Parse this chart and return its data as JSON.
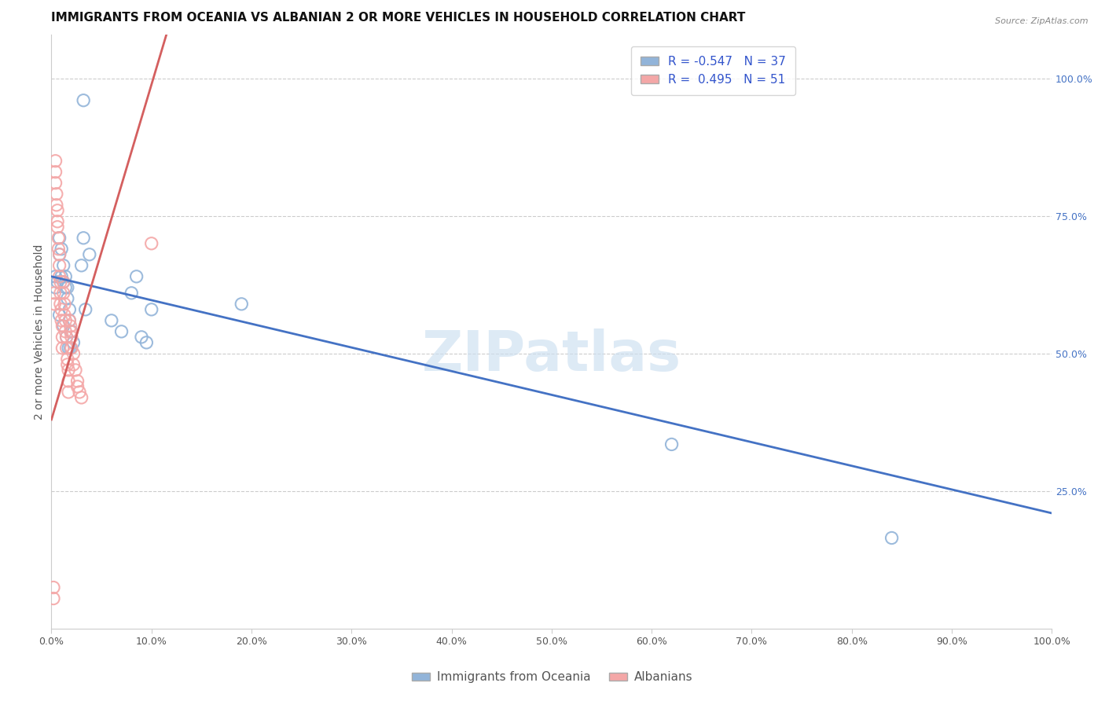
{
  "title": "IMMIGRANTS FROM OCEANIA VS ALBANIAN 2 OR MORE VEHICLES IN HOUSEHOLD CORRELATION CHART",
  "source": "Source: ZipAtlas.com",
  "ylabel": "2 or more Vehicles in Household",
  "watermark": "ZIPatlas",
  "legend_blue_R": "-0.547",
  "legend_blue_N": "37",
  "legend_pink_R": "0.495",
  "legend_pink_N": "51",
  "blue_color": "#92b4d9",
  "pink_color": "#f4a7a7",
  "blue_line_color": "#4472c4",
  "pink_line_color": "#d45f5f",
  "right_ytick_labels": [
    "25.0%",
    "50.0%",
    "75.0%",
    "100.0%"
  ],
  "right_ytick_values": [
    0.25,
    0.5,
    0.75,
    1.0
  ],
  "xmin": 0.0,
  "xmax": 1.0,
  "ymin": 0.0,
  "ymax": 1.08,
  "blue_scatter_x": [
    0.032,
    0.004,
    0.004,
    0.006,
    0.008,
    0.01,
    0.012,
    0.014,
    0.016,
    0.018,
    0.008,
    0.01,
    0.012,
    0.014,
    0.016,
    0.018,
    0.02,
    0.022,
    0.03,
    0.032,
    0.034,
    0.038,
    0.06,
    0.07,
    0.08,
    0.085,
    0.09,
    0.095,
    0.1,
    0.008,
    0.012,
    0.015,
    0.017,
    0.019,
    0.62,
    0.84,
    0.19
  ],
  "blue_scatter_y": [
    0.96,
    0.64,
    0.62,
    0.63,
    0.68,
    0.64,
    0.63,
    0.62,
    0.6,
    0.58,
    0.71,
    0.69,
    0.66,
    0.64,
    0.62,
    0.56,
    0.54,
    0.52,
    0.66,
    0.71,
    0.58,
    0.68,
    0.56,
    0.54,
    0.61,
    0.64,
    0.53,
    0.52,
    0.58,
    0.57,
    0.55,
    0.53,
    0.51,
    0.51,
    0.335,
    0.165,
    0.59
  ],
  "pink_scatter_x": [
    0.002,
    0.003,
    0.003,
    0.004,
    0.004,
    0.004,
    0.005,
    0.005,
    0.006,
    0.006,
    0.006,
    0.007,
    0.007,
    0.008,
    0.008,
    0.008,
    0.009,
    0.009,
    0.009,
    0.01,
    0.01,
    0.011,
    0.011,
    0.011,
    0.012,
    0.012,
    0.013,
    0.013,
    0.014,
    0.014,
    0.015,
    0.015,
    0.016,
    0.016,
    0.017,
    0.017,
    0.017,
    0.018,
    0.019,
    0.019,
    0.02,
    0.02,
    0.022,
    0.022,
    0.024,
    0.026,
    0.026,
    0.028,
    0.03,
    0.1,
    0.002
  ],
  "pink_scatter_y": [
    0.055,
    0.59,
    0.61,
    0.83,
    0.85,
    0.81,
    0.79,
    0.77,
    0.76,
    0.74,
    0.73,
    0.71,
    0.69,
    0.68,
    0.66,
    0.64,
    0.63,
    0.61,
    0.59,
    0.58,
    0.56,
    0.55,
    0.53,
    0.51,
    0.63,
    0.61,
    0.59,
    0.57,
    0.56,
    0.54,
    0.53,
    0.51,
    0.49,
    0.48,
    0.47,
    0.45,
    0.43,
    0.56,
    0.55,
    0.54,
    0.53,
    0.51,
    0.5,
    0.48,
    0.47,
    0.45,
    0.44,
    0.43,
    0.42,
    0.7,
    0.075
  ],
  "blue_trend_x0": 0.0,
  "blue_trend_x1": 1.0,
  "blue_trend_y0": 0.64,
  "blue_trend_y1": 0.21,
  "pink_trend_x0": 0.0,
  "pink_trend_x1": 0.115,
  "pink_trend_y0": 0.38,
  "pink_trend_y1": 1.08,
  "background_color": "#ffffff",
  "grid_color": "#cccccc",
  "title_fontsize": 11,
  "axis_label_fontsize": 10,
  "tick_fontsize": 9,
  "marker_size": 11,
  "marker_linewidth": 1.5
}
